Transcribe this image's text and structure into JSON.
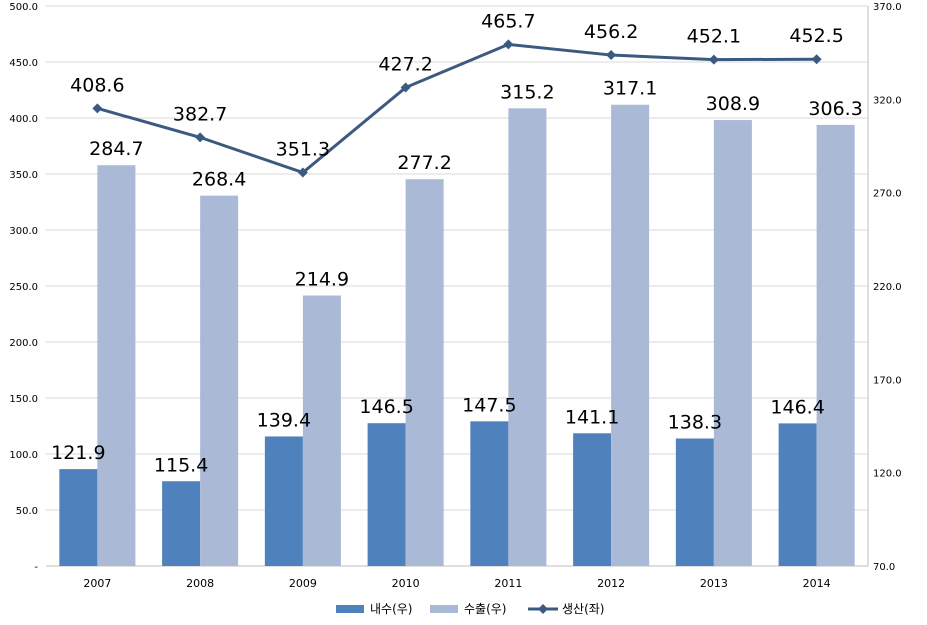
{
  "chart_data": {
    "type": "bar",
    "categories": [
      "2007",
      "2008",
      "2009",
      "2010",
      "2011",
      "2012",
      "2013",
      "2014"
    ],
    "series": [
      {
        "name": "내수(우)",
        "type": "bar",
        "axis": "right",
        "color": "#4F81BD",
        "values": [
          121.9,
          115.4,
          139.4,
          146.5,
          147.5,
          141.1,
          138.3,
          146.4
        ]
      },
      {
        "name": "수출(우)",
        "type": "bar",
        "axis": "right",
        "color": "#A9B9D6",
        "values": [
          284.7,
          268.4,
          214.9,
          277.2,
          315.2,
          317.1,
          308.9,
          306.3
        ]
      },
      {
        "name": "생산(좌)",
        "type": "line",
        "axis": "left",
        "color": "#3C5A80",
        "marker": "diamond",
        "values": [
          408.6,
          382.7,
          351.3,
          427.2,
          465.7,
          456.2,
          452.1,
          452.5
        ]
      }
    ],
    "left_axis": {
      "ylim": [
        0,
        500
      ],
      "ticks": [
        "-",
        "50.0",
        "100.0",
        "150.0",
        "200.0",
        "250.0",
        "300.0",
        "350.0",
        "400.0",
        "450.0",
        "500.0"
      ]
    },
    "right_axis": {
      "ylim": [
        70,
        370
      ],
      "ticks": [
        "70.0",
        "120.0",
        "170.0",
        "220.0",
        "270.0",
        "320.0",
        "370.0"
      ]
    },
    "grid": true,
    "legend_position": "bottom",
    "title": "",
    "xlabel": "",
    "ylabel": ""
  }
}
